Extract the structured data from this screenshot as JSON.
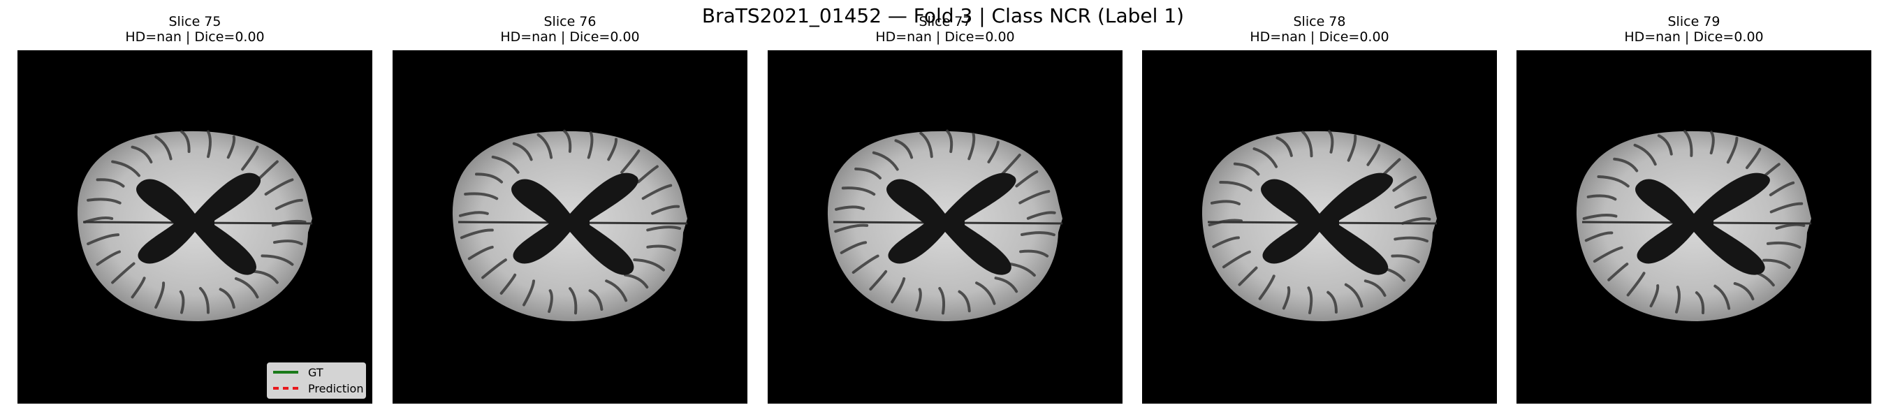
{
  "figure": {
    "title": "BraTS2021_01452 — Fold 3 | Class NCR (Label 1)"
  },
  "panels": [
    {
      "slice": "Slice 75",
      "metrics": "HD=nan | Dice=0.00"
    },
    {
      "slice": "Slice 76",
      "metrics": "HD=nan | Dice=0.00"
    },
    {
      "slice": "Slice 77",
      "metrics": "HD=nan | Dice=0.00"
    },
    {
      "slice": "Slice 78",
      "metrics": "HD=nan | Dice=0.00"
    },
    {
      "slice": "Slice 79",
      "metrics": "HD=nan | Dice=0.00"
    }
  ],
  "legend": {
    "items": [
      {
        "label": "GT",
        "color": "#1a7a1a",
        "style": "solid"
      },
      {
        "label": "Prediction",
        "color": "#e8191e",
        "style": "dashed"
      }
    ]
  },
  "colors": {
    "background": "#ffffff",
    "image_background": "#000000"
  }
}
